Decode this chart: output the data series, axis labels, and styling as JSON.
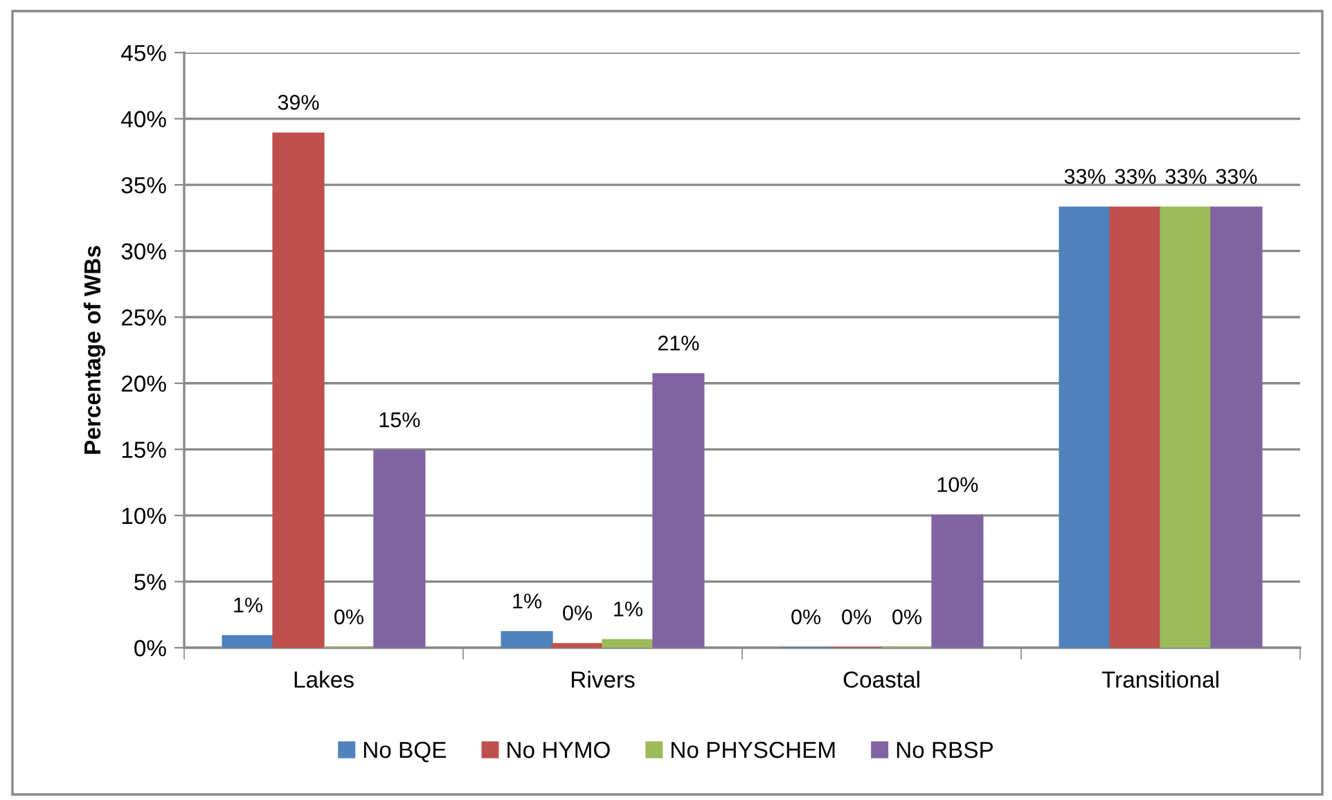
{
  "chart_data": {
    "type": "bar",
    "categories": [
      "Lakes",
      "Rivers",
      "Coastal",
      "Transitional"
    ],
    "series": [
      {
        "name": "No BQE",
        "color": "#4f81bd",
        "values": [
          0.9,
          1.2,
          0,
          33.3
        ],
        "value_labels": [
          "1%",
          "1%",
          "0%",
          "33%"
        ]
      },
      {
        "name": "No HYMO",
        "color": "#c0504d",
        "values": [
          38.9,
          0.3,
          0,
          33.3
        ],
        "value_labels": [
          "39%",
          "0%",
          "0%",
          "33%"
        ]
      },
      {
        "name": "No PHYSCHEM",
        "color": "#9bbb59",
        "values": [
          0,
          0.6,
          0,
          33.3
        ],
        "value_labels": [
          "0%",
          "1%",
          "0%",
          "33%"
        ]
      },
      {
        "name": "No RBSP",
        "color": "#8064a2",
        "values": [
          14.9,
          20.7,
          10,
          33.3
        ],
        "value_labels": [
          "15%",
          "21%",
          "10%",
          "33%"
        ]
      }
    ],
    "ylabel": "Percentage of WBs",
    "ylim": [
      0,
      45
    ],
    "yticks": [
      {
        "value": 0,
        "label": "0%"
      },
      {
        "value": 5,
        "label": "5%"
      },
      {
        "value": 10,
        "label": "10%"
      },
      {
        "value": 15,
        "label": "15%"
      },
      {
        "value": 20,
        "label": "20%"
      },
      {
        "value": 25,
        "label": "25%"
      },
      {
        "value": 30,
        "label": "30%"
      },
      {
        "value": 35,
        "label": "35%"
      },
      {
        "value": 40,
        "label": "40%"
      },
      {
        "value": 45,
        "label": "45%"
      }
    ],
    "grid": "y",
    "legend": "bottom"
  }
}
